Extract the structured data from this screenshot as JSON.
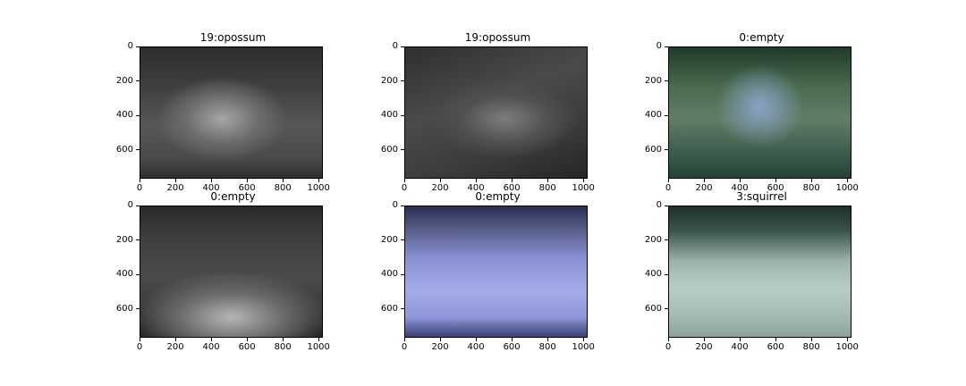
{
  "figure": {
    "panels": [
      {
        "title": "19:opossum",
        "palette": "night-gray-wall"
      },
      {
        "title": "19:opossum",
        "palette": "night-gray-slope"
      },
      {
        "title": "0:empty",
        "palette": "day-green-forest"
      },
      {
        "title": "0:empty",
        "palette": "night-gray-culvert"
      },
      {
        "title": "0:empty",
        "palette": "day-blue-ground"
      },
      {
        "title": "3:squirrel",
        "palette": "day-teal-sand"
      }
    ],
    "x_ticks": [
      "0",
      "200",
      "400",
      "600",
      "800",
      "1000"
    ],
    "y_ticks": [
      "0",
      "200",
      "400",
      "600"
    ]
  }
}
